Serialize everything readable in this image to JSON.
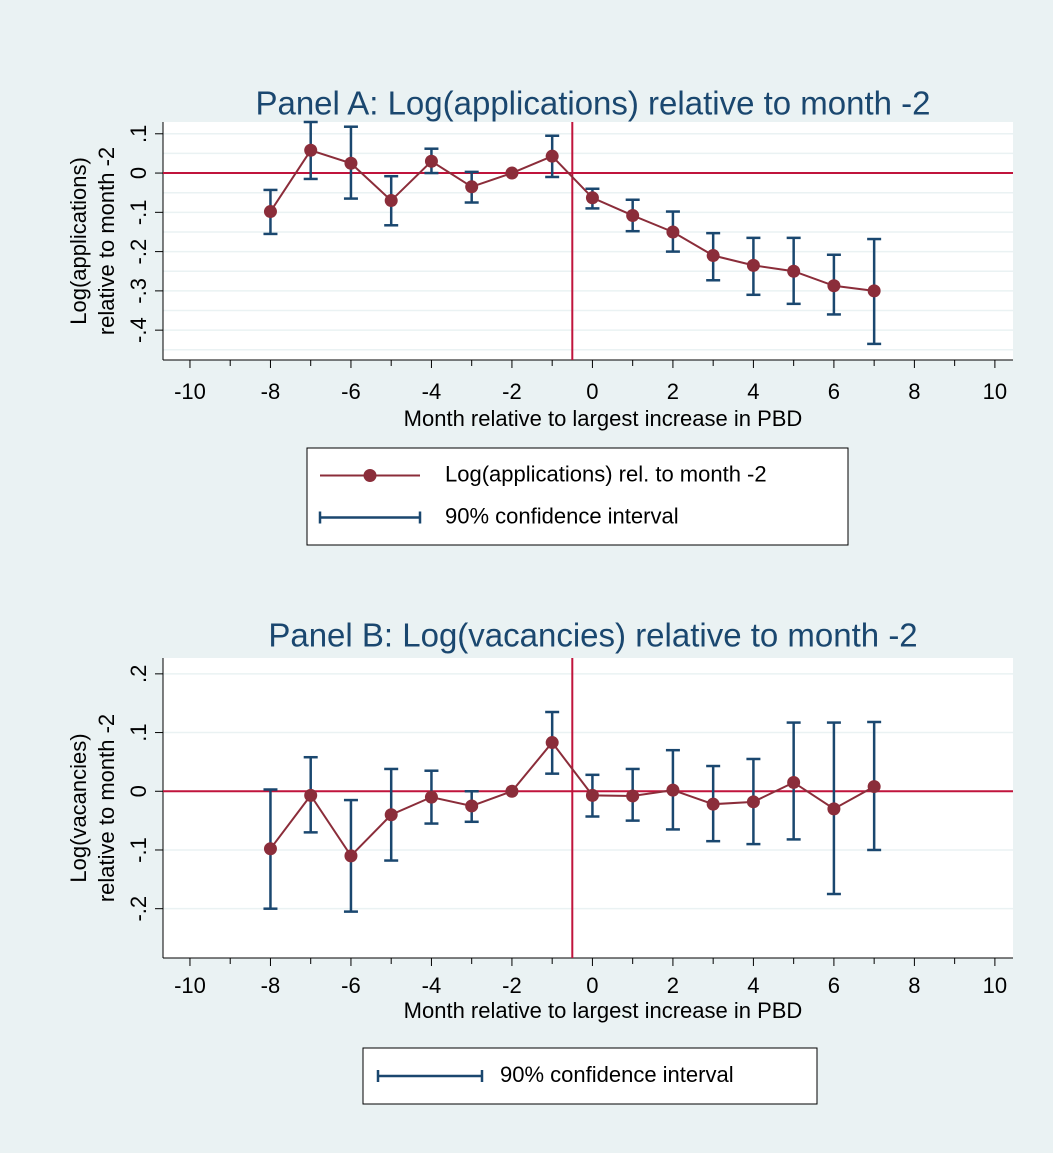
{
  "chart_data": [
    {
      "type": "line",
      "title": "Panel A: Log(applications) relative to month -2",
      "xlabel": "Month relative to largest increase in PBD",
      "ylabel": [
        "Log(applications)",
        "relative to month -2"
      ],
      "x": [
        -8,
        -7,
        -6,
        -5,
        -4,
        -3,
        -2,
        -1,
        0,
        1,
        2,
        3,
        4,
        5,
        6,
        7
      ],
      "series": [
        {
          "name": "Log(applications) rel. to month -2",
          "color": "#8b2d3a",
          "values": [
            -0.098,
            0.058,
            0.025,
            -0.07,
            0.03,
            -0.035,
            0,
            0.043,
            -0.063,
            -0.108,
            -0.15,
            -0.21,
            -0.235,
            -0.25,
            -0.287,
            -0.3
          ],
          "ci_low": [
            -0.155,
            -0.015,
            -0.065,
            -0.133,
            0.0,
            -0.075,
            null,
            -0.01,
            -0.09,
            -0.148,
            -0.2,
            -0.273,
            -0.31,
            -0.333,
            -0.36,
            -0.435
          ],
          "ci_high": [
            -0.043,
            0.13,
            0.118,
            -0.008,
            0.062,
            0.003,
            null,
            0.095,
            -0.04,
            -0.068,
            -0.098,
            -0.153,
            -0.165,
            -0.165,
            -0.208,
            -0.168
          ]
        }
      ],
      "ci_name": "90% confidence interval",
      "ci_color": "#1a476f",
      "xlim": [
        -10.67,
        10.45
      ],
      "xticks": [
        -10,
        -8,
        -6,
        -4,
        -2,
        0,
        2,
        4,
        6,
        8,
        10
      ],
      "xminorticks": [
        -9,
        -7,
        -5,
        -3,
        -1,
        1,
        3,
        5,
        7,
        9
      ],
      "ylim": [
        -0.476,
        0.13
      ],
      "yticks": [
        {
          "value": -0.4,
          "label": "-.4"
        },
        {
          "value": -0.3,
          "label": "-.3"
        },
        {
          "value": -0.2,
          "label": "-.2"
        },
        {
          "value": -0.1,
          "label": "-.1"
        },
        0,
        {
          "value": 0.1,
          "label": ".1"
        }
      ],
      "yminorticks": [
        -0.45,
        -0.35,
        -0.25,
        -0.15,
        -0.05,
        0.05
      ],
      "grid": true,
      "hline": 0,
      "vline": -0.5,
      "refline_color": "#c0143c"
    },
    {
      "type": "line",
      "title": "Panel B: Log(vacancies) relative to month -2",
      "xlabel": "Month relative to largest increase in PBD",
      "ylabel": [
        "Log(vacancies)",
        "relative to month -2"
      ],
      "x": [
        -8,
        -7,
        -6,
        -5,
        -4,
        -3,
        -2,
        -1,
        0,
        1,
        2,
        3,
        4,
        5,
        6,
        7
      ],
      "series": [
        {
          "color": "#8b2d3a",
          "values": [
            -0.098,
            -0.007,
            -0.11,
            -0.04,
            -0.01,
            -0.025,
            0,
            0.083,
            -0.007,
            -0.008,
            0.002,
            -0.022,
            -0.018,
            0.015,
            -0.03,
            0.008
          ],
          "ci_low": [
            -0.2,
            -0.07,
            -0.205,
            -0.118,
            -0.055,
            -0.052,
            null,
            0.03,
            -0.043,
            -0.05,
            -0.065,
            -0.085,
            -0.09,
            -0.082,
            -0.175,
            -0.1
          ],
          "ci_high": [
            0.003,
            0.058,
            -0.015,
            0.038,
            0.035,
            0.0,
            null,
            0.135,
            0.028,
            0.038,
            0.07,
            0.043,
            0.055,
            0.117,
            0.117,
            0.118
          ]
        }
      ],
      "ci_name": "90% confidence interval",
      "ci_color": "#1a476f",
      "xlim": [
        -10.67,
        10.45
      ],
      "xticks": [
        -10,
        -8,
        -6,
        -4,
        -2,
        0,
        2,
        4,
        6,
        8,
        10
      ],
      "xminorticks": [
        -9,
        -7,
        -5,
        -3,
        -1,
        1,
        3,
        5,
        7,
        9
      ],
      "ylim": [
        -0.284,
        0.227
      ],
      "yticks": [
        {
          "value": -0.2,
          "label": "-.2"
        },
        {
          "value": -0.1,
          "label": "-.1"
        },
        0,
        {
          "value": 0.1,
          "label": ".1"
        },
        {
          "value": 0.2,
          "label": ".2"
        }
      ],
      "grid": true,
      "hline": 0,
      "vline": -0.5,
      "refline_color": "#c0143c"
    }
  ]
}
